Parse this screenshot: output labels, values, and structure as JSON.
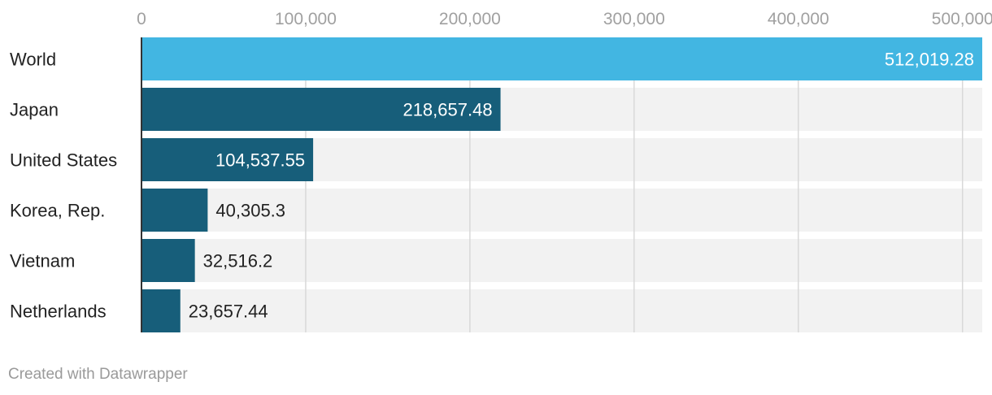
{
  "chart_data": {
    "type": "bar",
    "orientation": "horizontal",
    "categories": [
      "World",
      "Japan",
      "United States",
      "Korea, Rep.",
      "Vietnam",
      "Netherlands"
    ],
    "values": [
      512019.28,
      218657.48,
      104537.55,
      40305.3,
      32516.2,
      23657.44
    ],
    "value_labels": [
      "512,019.28",
      "218,657.48",
      "104,537.55",
      "40,305.3",
      "32,516.2",
      "23,657.44"
    ],
    "xlim": [
      0,
      512019.28
    ],
    "x_ticks": [
      0,
      100000,
      200000,
      300000,
      400000,
      500000
    ],
    "x_tick_labels": [
      "0",
      "100,000",
      "200,000",
      "300,000",
      "400,000",
      "500,000"
    ],
    "x_axis_position": "top",
    "grid": true,
    "highlight_category": "World",
    "colors": {
      "highlight": "#42b6e2",
      "bar": "#175e7a",
      "track": "#f2f2f2",
      "grid": "#d9d9d9",
      "axis": "#333333",
      "label_inside": "#ffffff",
      "label_outside": "#222222"
    }
  },
  "footer": {
    "credit": "Created with Datawrapper"
  }
}
